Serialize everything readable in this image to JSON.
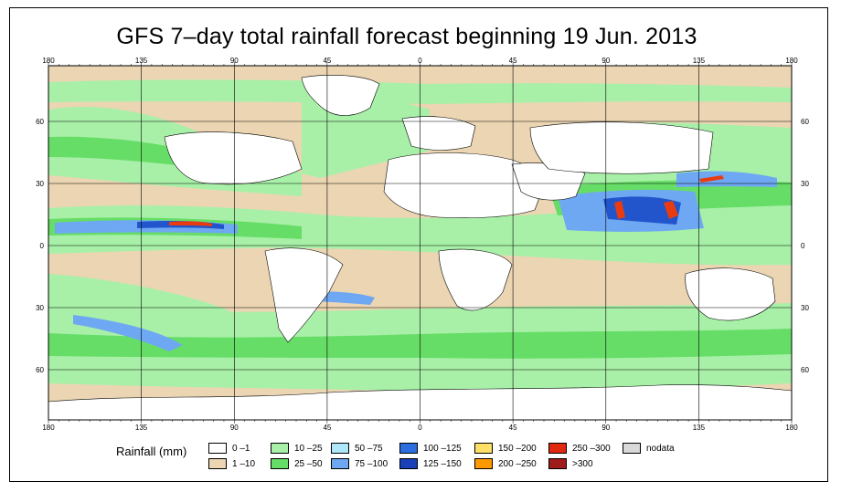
{
  "title": "GFS 7–day total rainfall forecast beginning 19 Jun. 2013",
  "map": {
    "lon_ticks_top": [
      "180",
      "135",
      "90",
      "45",
      "0",
      "45",
      "90",
      "135",
      "180"
    ],
    "lon_ticks_bottom": [
      "180",
      "135",
      "90",
      "45",
      "0",
      "45",
      "90",
      "135",
      "180"
    ],
    "lat_ticks_left": [
      "60",
      "30",
      "0",
      "30",
      "60"
    ],
    "lat_ticks_right": [
      "60",
      "30",
      "0",
      "30",
      "60"
    ],
    "colors": {
      "dry": "#ebd5b3",
      "light": "#a8f0a8",
      "moderate": "#66dd66",
      "heavy": "#6ea8f2",
      "very_heavy": "#2255cc",
      "extreme": "#e83c10",
      "land_white": "#ffffff"
    }
  },
  "legend": {
    "title": "Rainfall (mm)",
    "items": [
      {
        "label": "0 –1",
        "color": "#ffffff"
      },
      {
        "label": "1 –10",
        "color": "#ebd5b3"
      },
      {
        "label": "10 –25",
        "color": "#a8f0a8"
      },
      {
        "label": "25 –50",
        "color": "#66dd66"
      },
      {
        "label": "50 –75",
        "color": "#aee6fa"
      },
      {
        "label": "75 –100",
        "color": "#6ea8f2"
      },
      {
        "label": "100 –125",
        "color": "#2c6ee0"
      },
      {
        "label": "125 –150",
        "color": "#1a40b8"
      },
      {
        "label": "150 –200",
        "color": "#ffe066"
      },
      {
        "label": "200 –250",
        "color": "#ff9900"
      },
      {
        "label": "250 –300",
        "color": "#e02810"
      },
      {
        "label": ">300",
        "color": "#a01c1c"
      },
      {
        "label": "nodata",
        "color": "#d9d9d9"
      }
    ]
  }
}
